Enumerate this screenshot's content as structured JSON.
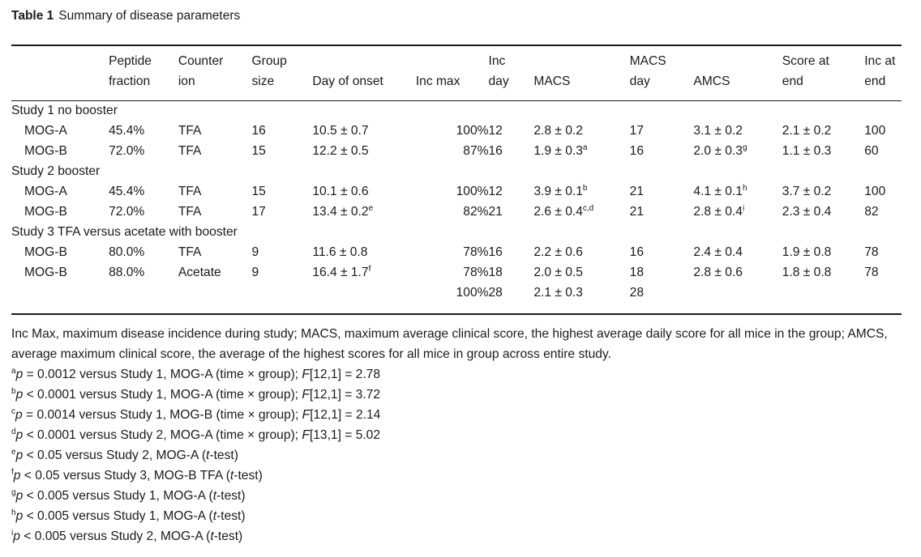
{
  "table": {
    "label": "Table 1",
    "title": "Summary of disease parameters",
    "headers": {
      "peptide": [
        "Peptide",
        "fraction"
      ],
      "counter": [
        "Counter",
        "ion"
      ],
      "group": [
        "Group",
        "size"
      ],
      "onset": [
        "",
        "Day of onset"
      ],
      "incmax": [
        "",
        "Inc max"
      ],
      "incday": [
        "Inc",
        "day"
      ],
      "macs": [
        "",
        "MACS"
      ],
      "macsday": [
        "MACS",
        "day"
      ],
      "amcs": [
        "",
        "AMCS"
      ],
      "score": [
        "Score at",
        "end"
      ],
      "incend": [
        "Inc at",
        "end"
      ]
    },
    "groups": [
      {
        "title": "Study 1 no booster",
        "rows": [
          {
            "name": "MOG-A",
            "peptide": "45.4%",
            "ion": "TFA",
            "size": "16",
            "onset": "10.5 ± 0.7",
            "onset_sup": "",
            "incmax": "100%",
            "incday": "12",
            "macs": "2.8 ± 0.2",
            "macs_sup": "",
            "macsday": "17",
            "amcs": "3.1 ± 0.2",
            "amcs_sup": "",
            "score": "2.1 ± 0.2",
            "incend": "100"
          },
          {
            "name": "MOG-B",
            "peptide": "72.0%",
            "ion": "TFA",
            "size": "15",
            "onset": "12.2 ± 0.5",
            "onset_sup": "",
            "incmax": "87%",
            "incday": "16",
            "macs": "1.9 ± 0.3",
            "macs_sup": "a",
            "macsday": "16",
            "amcs": "2.0 ± 0.3",
            "amcs_sup": "g",
            "score": "1.1 ± 0.3",
            "incend": "60"
          }
        ]
      },
      {
        "title": "Study 2 booster",
        "rows": [
          {
            "name": "MOG-A",
            "peptide": "45.4%",
            "ion": "TFA",
            "size": "15",
            "onset": "10.1 ± 0.6",
            "onset_sup": "",
            "incmax": "100%",
            "incday": "12",
            "macs": "3.9 ± 0.1",
            "macs_sup": "b",
            "macsday": "21",
            "amcs": "4.1 ± 0.1",
            "amcs_sup": "h",
            "score": "3.7 ± 0.2",
            "incend": "100"
          },
          {
            "name": "MOG-B",
            "peptide": "72.0%",
            "ion": "TFA",
            "size": "17",
            "onset": "13.4 ± 0.2",
            "onset_sup": "e",
            "incmax": "82%",
            "incday": "21",
            "macs": "2.6 ± 0.4",
            "macs_sup": "c,d",
            "macsday": "21",
            "amcs": "2.8 ± 0.4",
            "amcs_sup": "i",
            "score": "2.3 ± 0.4",
            "incend": "82"
          }
        ]
      },
      {
        "title": "Study 3 TFA versus acetate with booster",
        "rows": [
          {
            "name": "MOG-B",
            "peptide": "80.0%",
            "ion": "TFA",
            "size": "9",
            "onset": "11.6 ± 0.8",
            "onset_sup": "",
            "incmax": "78%",
            "incday": "16",
            "macs": "2.2 ± 0.6",
            "macs_sup": "",
            "macsday": "16",
            "amcs": "2.4 ± 0.4",
            "amcs_sup": "",
            "score": "1.9 ± 0.8",
            "incend": "78"
          },
          {
            "name": "MOG-B",
            "peptide": "88.0%",
            "ion": "Acetate",
            "size": "9",
            "onset": "16.4 ± 1.7",
            "onset_sup": "f",
            "incmax": "78%",
            "incday": "18",
            "macs": "2.0 ± 0.5",
            "macs_sup": "",
            "macsday": "18",
            "amcs": "2.8 ± 0.6",
            "amcs_sup": "",
            "score": "1.8 ± 0.8",
            "incend": "78"
          },
          {
            "name": "",
            "peptide": "",
            "ion": "",
            "size": "",
            "onset": "",
            "onset_sup": "",
            "incmax": "100%",
            "incday": "28",
            "macs": "2.1 ± 0.3",
            "macs_sup": "",
            "macsday": "28",
            "amcs": "",
            "amcs_sup": "",
            "score": "",
            "incend": ""
          }
        ]
      }
    ]
  },
  "footnotes": {
    "abbrev": "Inc Max, maximum disease incidence during study; MACS, maximum average clinical score, the highest average daily score for all mice in the group; AMCS, average maximum clinical score, the average of the highest scores for all mice in group across entire study.",
    "items": [
      {
        "mark": "a",
        "cmp": "=",
        "val": "0.0012",
        "text": " versus Study 1, MOG-A (time × group); ",
        "fpart": "[12,1] = 2.78",
        "kind": "F"
      },
      {
        "mark": "b",
        "cmp": "<",
        "val": "0.0001",
        "text": " versus Study 1, MOG-A (time × group); ",
        "fpart": "[12,1] = 3.72",
        "kind": "F"
      },
      {
        "mark": "c",
        "cmp": "=",
        "val": "0.0014",
        "text": " versus Study 1, MOG-B (time × group); ",
        "fpart": "[12,1] = 2.14",
        "kind": "F"
      },
      {
        "mark": "d",
        "cmp": "<",
        "val": "0.0001",
        "text": " versus Study 2, MOG-A (time × group); ",
        "fpart": "[13,1] = 5.02",
        "kind": "F"
      },
      {
        "mark": "e",
        "cmp": "<",
        "val": "0.05",
        "text": " versus Study 2, MOG-A (",
        "fpart": "-test)",
        "kind": "t"
      },
      {
        "mark": "f",
        "cmp": "<",
        "val": "0.05",
        "text": " versus Study 3, MOG-B TFA (",
        "fpart": "-test)",
        "kind": "t"
      },
      {
        "mark": "g",
        "cmp": "<",
        "val": "0.005",
        "text": " versus Study 1, MOG-A (",
        "fpart": "-test)",
        "kind": "t"
      },
      {
        "mark": "h",
        "cmp": "<",
        "val": "0.005",
        "text": " versus Study 1, MOG-A (",
        "fpart": "-test)",
        "kind": "t"
      },
      {
        "mark": "i",
        "cmp": "<",
        "val": "0.005",
        "text": " versus Study 2, MOG-A (",
        "fpart": "-test)",
        "kind": "t"
      }
    ]
  }
}
